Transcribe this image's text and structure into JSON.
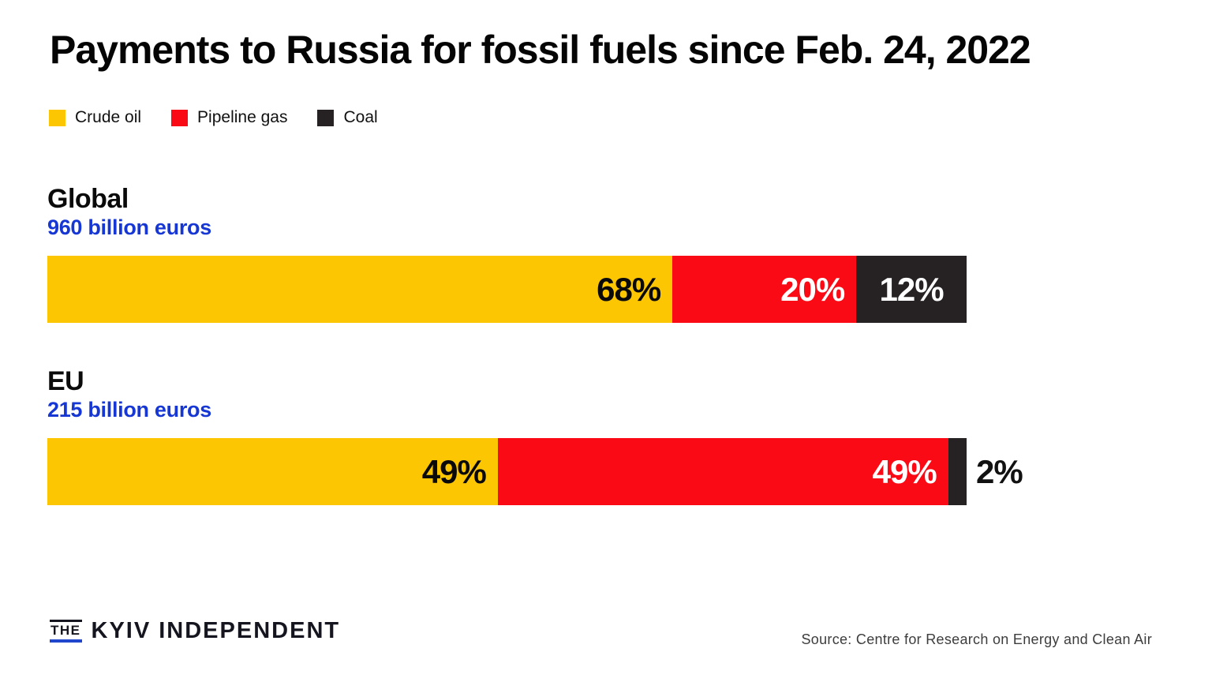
{
  "title": "Payments to Russia for fossil fuels since Feb. 24, 2022",
  "colors": {
    "crude_oil": "#FCC603",
    "pipeline_gas": "#FA0A15",
    "coal": "#262223",
    "accent_blue": "#1637D4",
    "logo_navy": "#15151F",
    "logo_underline": "#2146CE",
    "source_gray": "#3D3D3D"
  },
  "chart_data": {
    "type": "bar",
    "subtype": "horizontal-stacked",
    "title": "Payments to Russia for fossil fuels since Feb. 24, 2022",
    "unit": "percent",
    "xlim": [
      0,
      100
    ],
    "grid": false,
    "legend_position": "top-left",
    "legend": [
      {
        "label": "Crude oil",
        "color": "#FCC603",
        "text_color": "#0a0a0a"
      },
      {
        "label": "Pipeline gas",
        "color": "#FA0A15",
        "text_color": "#ffffff"
      },
      {
        "label": "Coal",
        "color": "#262223",
        "text_color": "#ffffff"
      }
    ],
    "bars": [
      {
        "label": "Global",
        "sublabel": "960 billion euros",
        "segments": [
          {
            "name": "Crude oil",
            "value": 68,
            "display": "68%",
            "label_placement": "inside-right"
          },
          {
            "name": "Pipeline gas",
            "value": 20,
            "display": "20%",
            "label_placement": "inside-right"
          },
          {
            "name": "Coal",
            "value": 12,
            "display": "12%",
            "label_placement": "inside-center"
          }
        ]
      },
      {
        "label": "EU",
        "sublabel": "215 billion euros",
        "segments": [
          {
            "name": "Crude oil",
            "value": 49,
            "display": "49%",
            "label_placement": "inside-right"
          },
          {
            "name": "Pipeline gas",
            "value": 49,
            "display": "49%",
            "label_placement": "inside-right"
          },
          {
            "name": "Coal",
            "value": 2,
            "display": "2%",
            "label_placement": "outside-right"
          }
        ]
      }
    ]
  },
  "footer": {
    "logo": {
      "the": "THE",
      "name": "KYIV INDEPENDENT"
    },
    "source": "Source: Centre for Research on Energy and Clean Air"
  }
}
